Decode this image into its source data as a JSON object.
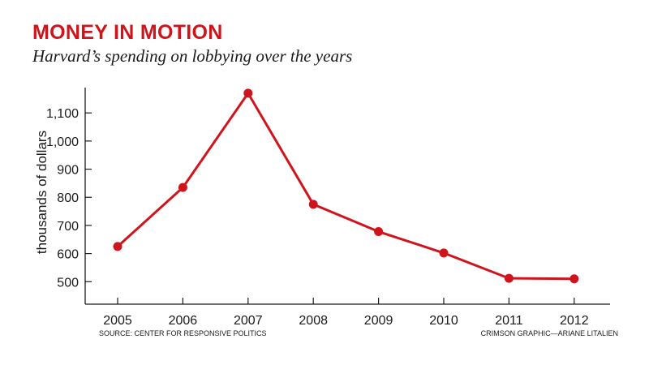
{
  "title": "MONEY IN MOTION",
  "subtitle": "Harvard’s spending on lobbying over the years",
  "source": "SOURCE: CENTER FOR RESPONSIVE POLITICS",
  "credit": "CRIMSON GRAPHIC—ARIANE LITALIEN",
  "colors": {
    "accent": "#d0141c",
    "axis": "#1a1a1a"
  },
  "chart_data": {
    "type": "line",
    "title": "MONEY IN MOTION",
    "subtitle": "Harvard’s spending on lobbying over the years",
    "xlabel": "",
    "ylabel": "thousands of dollars",
    "categories": [
      "2005",
      "2006",
      "2007",
      "2008",
      "2009",
      "2010",
      "2011",
      "2012"
    ],
    "series": [
      {
        "values": [
          625,
          835,
          1170,
          775,
          678,
          602,
          512,
          510
        ]
      }
    ],
    "y_ticks": [
      500,
      600,
      700,
      800,
      900,
      1000,
      1100
    ],
    "y_tick_labels": [
      "500",
      "600",
      "700",
      "800",
      "900",
      "1,000",
      "1,100"
    ],
    "ylim": [
      420,
      1190
    ],
    "grid": false,
    "legend": "none"
  }
}
